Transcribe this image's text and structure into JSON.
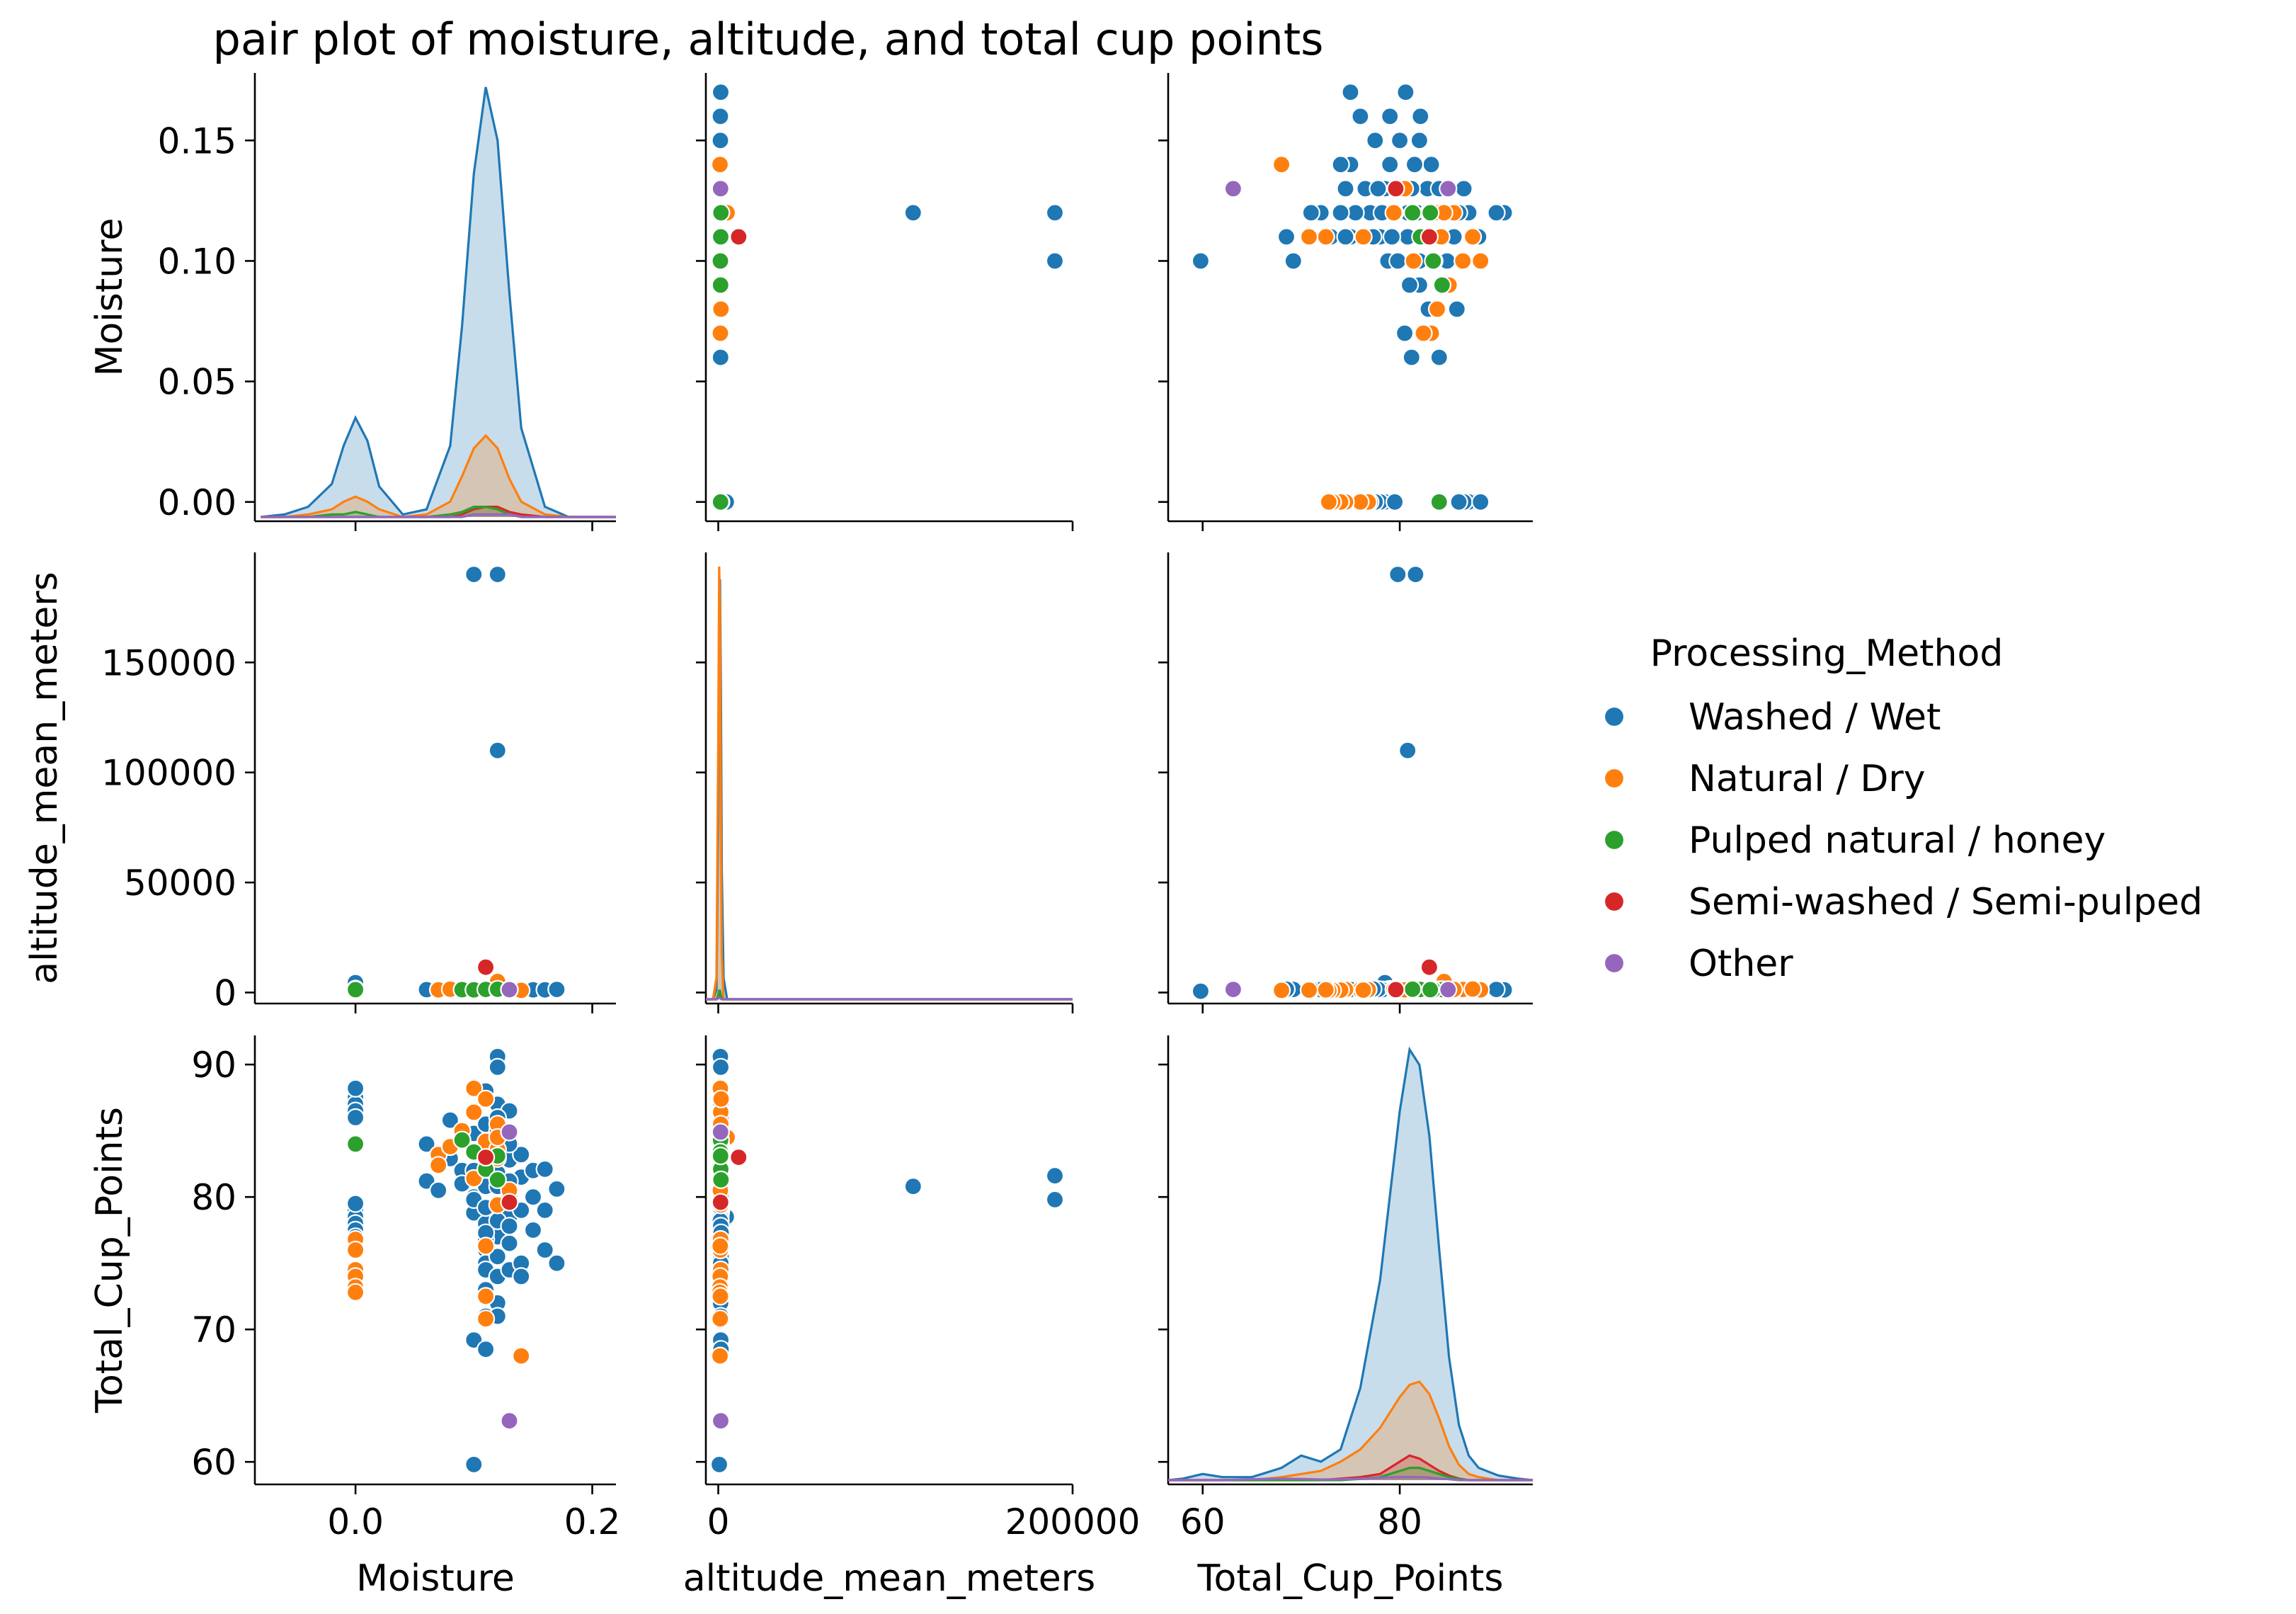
{
  "chart_data": {
    "type": "scatter",
    "subtype": "pair-plot",
    "title": "pair plot of moisture, altitude, and total cup points",
    "variables": [
      "Moisture",
      "altitude_mean_meters",
      "Total_Cup_Points"
    ],
    "hue": "Processing_Method",
    "legend": {
      "title": "Processing_Method",
      "placement": "right",
      "entries": [
        {
          "label": "Washed / Wet",
          "color": "#1f77b4"
        },
        {
          "label": "Natural / Dry",
          "color": "#ff7f0e"
        },
        {
          "label": "Pulped natural / honey",
          "color": "#2ca02c"
        },
        {
          "label": "Semi-washed / Semi-pulped",
          "color": "#d62728"
        },
        {
          "label": "Other",
          "color": "#9467bd"
        }
      ]
    },
    "axes": {
      "Moisture": {
        "lim": [
          -0.085,
          0.22
        ],
        "ticks": [
          0.0,
          0.2
        ],
        "tick_labels": [
          "0.0",
          "0.2"
        ],
        "row_lim": [
          -0.008,
          0.178
        ],
        "row_ticks": [
          0.0,
          0.05,
          0.1,
          0.15
        ],
        "row_tick_labels": [
          "0.00",
          "0.05",
          "0.10",
          "0.15"
        ]
      },
      "altitude_mean_meters": {
        "lim": [
          -7000,
          200000
        ],
        "ticks": [
          0,
          200000
        ],
        "tick_labels": [
          "0",
          "200000"
        ],
        "row_lim": [
          -5000,
          200000
        ],
        "row_ticks": [
          0,
          50000,
          100000,
          150000
        ],
        "row_tick_labels": [
          "0",
          "50000",
          "100000",
          "150000"
        ]
      },
      "Total_Cup_Points": {
        "lim": [
          56.5,
          93.5
        ],
        "ticks": [
          60,
          80
        ],
        "tick_labels": [
          "60",
          "80"
        ],
        "row_lim": [
          58.3,
          92.2
        ],
        "row_ticks": [
          60,
          70,
          80,
          90
        ],
        "row_tick_labels": [
          "60",
          "70",
          "80",
          "90"
        ]
      }
    },
    "points": {
      "washed": [
        [
          0.0,
          1300,
          88.0
        ],
        [
          0.0,
          1500,
          87.5
        ],
        [
          0.0,
          1700,
          87.0
        ],
        [
          0.0,
          1400,
          86.5
        ],
        [
          0.0,
          1200,
          86.0
        ],
        [
          0.0,
          1100,
          79.0
        ],
        [
          0.0,
          4500,
          78.5
        ],
        [
          0.0,
          1000,
          78.0
        ],
        [
          0.0,
          900,
          77.5
        ],
        [
          0.0,
          1300,
          77.0
        ],
        [
          0.0,
          1100,
          79.5
        ],
        [
          0.0,
          1600,
          88.2
        ],
        [
          0.06,
          1200,
          84.0
        ],
        [
          0.06,
          1300,
          81.2
        ],
        [
          0.07,
          1200,
          80.5
        ],
        [
          0.07,
          1400,
          83.2
        ],
        [
          0.08,
          1500,
          85.8
        ],
        [
          0.08,
          1600,
          82.9
        ],
        [
          0.09,
          1300,
          84.5
        ],
        [
          0.09,
          1200,
          82.0
        ],
        [
          0.09,
          1100,
          81.0
        ],
        [
          0.1,
          1500,
          86.5
        ],
        [
          0.1,
          1000,
          80.0
        ],
        [
          0.1,
          1300,
          78.8
        ],
        [
          0.1,
          1800,
          84.8
        ],
        [
          0.1,
          190000,
          79.8
        ],
        [
          0.1,
          1400,
          69.2
        ],
        [
          0.1,
          600,
          59.8
        ],
        [
          0.11,
          1500,
          88.0
        ],
        [
          0.11,
          1200,
          85.5
        ],
        [
          0.11,
          1300,
          83.0
        ],
        [
          0.11,
          1100,
          78.0
        ],
        [
          0.11,
          1400,
          76.0
        ],
        [
          0.11,
          1000,
          75.0
        ],
        [
          0.11,
          1600,
          73.0
        ],
        [
          0.11,
          1300,
          71.0
        ],
        [
          0.11,
          1500,
          68.5
        ],
        [
          0.11,
          1200,
          74.5
        ],
        [
          0.11,
          1300,
          80.8
        ],
        [
          0.12,
          1200,
          90.6
        ],
        [
          0.12,
          1400,
          89.8
        ],
        [
          0.12,
          1500,
          87.0
        ],
        [
          0.12,
          190000,
          81.6
        ],
        [
          0.12,
          110000,
          80.8
        ],
        [
          0.12,
          1300,
          84.0
        ],
        [
          0.12,
          1100,
          79.5
        ],
        [
          0.12,
          1000,
          77.0
        ],
        [
          0.12,
          1600,
          75.5
        ],
        [
          0.12,
          1200,
          74.0
        ],
        [
          0.12,
          1300,
          72.0
        ],
        [
          0.12,
          1400,
          71.0
        ],
        [
          0.13,
          1500,
          86.5
        ],
        [
          0.13,
          1300,
          82.8
        ],
        [
          0.13,
          1200,
          80.0
        ],
        [
          0.13,
          1100,
          78.5
        ],
        [
          0.13,
          1400,
          76.5
        ],
        [
          0.13,
          1300,
          74.5
        ],
        [
          0.14,
          1200,
          83.2
        ],
        [
          0.14,
          1300,
          81.5
        ],
        [
          0.14,
          1400,
          79.0
        ],
        [
          0.14,
          1500,
          75.0
        ],
        [
          0.14,
          1200,
          74.0
        ],
        [
          0.15,
          1300,
          82.0
        ],
        [
          0.15,
          1400,
          80.0
        ],
        [
          0.15,
          1200,
          77.5
        ],
        [
          0.16,
          1300,
          82.1
        ],
        [
          0.16,
          1500,
          79.0
        ],
        [
          0.16,
          1200,
          76.0
        ],
        [
          0.17,
          1600,
          80.6
        ],
        [
          0.17,
          1400,
          75.0
        ],
        [
          0.13,
          1300,
          84.0
        ],
        [
          0.11,
          1200,
          82.5
        ],
        [
          0.12,
          1400,
          81.8
        ],
        [
          0.1,
          1500,
          83.5
        ],
        [
          0.11,
          1300,
          79.2
        ],
        [
          0.12,
          1200,
          78.2
        ],
        [
          0.13,
          1400,
          77.8
        ],
        [
          0.11,
          1100,
          76.8
        ],
        [
          0.12,
          1300,
          85.0
        ],
        [
          0.12,
          1500,
          86.0
        ],
        [
          0.1,
          1200,
          82.0
        ],
        [
          0.13,
          1100,
          81.2
        ],
        [
          0.11,
          1600,
          77.3
        ]
      ],
      "natural": [
        [
          0.0,
          1300,
          76.8
        ],
        [
          0.0,
          1200,
          76.0
        ],
        [
          0.0,
          1400,
          74.5
        ],
        [
          0.0,
          1100,
          74.0
        ],
        [
          0.0,
          1000,
          73.2
        ],
        [
          0.0,
          900,
          72.8
        ],
        [
          0.07,
          1300,
          83.2
        ],
        [
          0.07,
          1200,
          82.4
        ],
        [
          0.08,
          1500,
          83.8
        ],
        [
          0.09,
          1300,
          85.0
        ],
        [
          0.1,
          1200,
          88.2
        ],
        [
          0.1,
          1400,
          86.4
        ],
        [
          0.11,
          1600,
          87.4
        ],
        [
          0.11,
          1300,
          84.2
        ],
        [
          0.11,
          1200,
          72.5
        ],
        [
          0.11,
          1100,
          70.8
        ],
        [
          0.12,
          1400,
          85.5
        ],
        [
          0.12,
          1300,
          82.9
        ],
        [
          0.13,
          1200,
          80.5
        ],
        [
          0.14,
          1000,
          68.0
        ],
        [
          0.12,
          1500,
          79.4
        ],
        [
          0.11,
          1100,
          76.3
        ],
        [
          0.1,
          1300,
          81.4
        ],
        [
          0.12,
          1200,
          83.6
        ],
        [
          0.12,
          5000,
          84.5
        ]
      ],
      "pulped": [
        [
          0.0,
          1300,
          84.0
        ],
        [
          0.09,
          1300,
          84.3
        ],
        [
          0.1,
          1200,
          83.4
        ],
        [
          0.11,
          1400,
          82.1
        ],
        [
          0.12,
          1300,
          83.1
        ],
        [
          0.12,
          1500,
          81.3
        ]
      ],
      "semi": [
        [
          0.11,
          11500,
          83.0
        ],
        [
          0.13,
          1300,
          79.6
        ]
      ],
      "other": [
        [
          0.13,
          1400,
          63.1
        ],
        [
          0.13,
          1300,
          84.9
        ]
      ]
    },
    "kde": {
      "Moisture": {
        "x": [
          -0.08,
          -0.06,
          -0.04,
          -0.02,
          -0.01,
          0.0,
          0.01,
          0.02,
          0.04,
          0.06,
          0.08,
          0.09,
          0.1,
          0.11,
          0.12,
          0.13,
          0.14,
          0.16,
          0.18,
          0.2,
          0.22
        ],
        "washed": [
          0.0,
          0.001,
          0.004,
          0.013,
          0.028,
          0.039,
          0.03,
          0.012,
          0.001,
          0.003,
          0.028,
          0.075,
          0.135,
          0.169,
          0.148,
          0.088,
          0.035,
          0.004,
          0.0,
          0.0,
          0.0
        ],
        "natural": [
          0.0,
          0.0,
          0.001,
          0.003,
          0.006,
          0.008,
          0.006,
          0.003,
          0.0,
          0.001,
          0.006,
          0.016,
          0.027,
          0.032,
          0.027,
          0.015,
          0.006,
          0.001,
          0.0,
          0.0,
          0.0
        ],
        "pulped": [
          0.0,
          0.0,
          0.0,
          0.001,
          0.001,
          0.002,
          0.001,
          0.0,
          0.0,
          0.0,
          0.001,
          0.002,
          0.004,
          0.004,
          0.003,
          0.001,
          0.0,
          0.0,
          0.0,
          0.0,
          0.0
        ],
        "semi": [
          0.0,
          0.0,
          0.0,
          0.0,
          0.0,
          0.0,
          0.0,
          0.0,
          0.0,
          0.0,
          0.0,
          0.001,
          0.003,
          0.004,
          0.004,
          0.002,
          0.001,
          0.0,
          0.0,
          0.0,
          0.0
        ],
        "other": [
          0.0,
          0.0,
          0.0,
          0.0,
          0.0,
          0.0,
          0.0,
          0.0,
          0.0,
          0.0,
          0.0,
          0.0,
          0.001,
          0.001,
          0.001,
          0.001,
          0.0,
          0.0,
          0.0,
          0.0,
          0.0
        ]
      },
      "altitude_mean_meters": {
        "x": [
          -7000,
          -3000,
          -1000,
          0,
          500,
          1000,
          1500,
          2000,
          3000,
          5000,
          8000,
          15000,
          50000,
          100000,
          150000,
          200000
        ],
        "washed": [
          0,
          0.0,
          0.02,
          0.4,
          0.85,
          0.97,
          0.7,
          0.3,
          0.05,
          0.0,
          0,
          0,
          0,
          0,
          0,
          0
        ],
        "natural": [
          0,
          0.0,
          0.05,
          0.6,
          1.0,
          0.9,
          0.4,
          0.1,
          0.0,
          0,
          0,
          0,
          0,
          0,
          0,
          0
        ],
        "pulped": [
          0,
          0,
          0.0,
          0.01,
          0.02,
          0.02,
          0.01,
          0,
          0,
          0,
          0,
          0,
          0,
          0,
          0,
          0
        ],
        "semi": [
          0,
          0,
          0.0,
          0.005,
          0.01,
          0.01,
          0.006,
          0.002,
          0.0,
          0,
          0,
          0,
          0,
          0,
          0,
          0
        ],
        "other": [
          0,
          0,
          0,
          0.002,
          0.004,
          0.003,
          0.001,
          0,
          0,
          0,
          0,
          0,
          0,
          0,
          0,
          0
        ]
      },
      "Total_Cup_Points": {
        "x": [
          56.5,
          58,
          60,
          62,
          65,
          68,
          70,
          72,
          74,
          76,
          78,
          80,
          81,
          82,
          83,
          84,
          85,
          86,
          87,
          88,
          90,
          92,
          93.5
        ],
        "washed": [
          0,
          0.0005,
          0.002,
          0.001,
          0.001,
          0.004,
          0.008,
          0.006,
          0.01,
          0.03,
          0.065,
          0.12,
          0.14,
          0.135,
          0.112,
          0.075,
          0.04,
          0.018,
          0.008,
          0.004,
          0.0015,
          0.0005,
          0
        ],
        "natural": [
          0,
          0,
          0,
          0,
          0,
          0.001,
          0.002,
          0.003,
          0.006,
          0.01,
          0.017,
          0.027,
          0.031,
          0.032,
          0.028,
          0.02,
          0.011,
          0.005,
          0.002,
          0.001,
          0,
          0,
          0
        ],
        "pulped": [
          0,
          0,
          0,
          0,
          0,
          0,
          0,
          0,
          0,
          0.0004,
          0.001,
          0.003,
          0.004,
          0.004,
          0.003,
          0.002,
          0.001,
          0.0004,
          0,
          0,
          0,
          0,
          0
        ],
        "semi": [
          0,
          0,
          0,
          0,
          0,
          0,
          0,
          0,
          0.0005,
          0.001,
          0.002,
          0.006,
          0.008,
          0.007,
          0.005,
          0.003,
          0.0015,
          0.0005,
          0,
          0,
          0,
          0,
          0
        ],
        "other": [
          0,
          0,
          0,
          0,
          0.0003,
          0.0005,
          0.0004,
          0.0002,
          0.0003,
          0.0005,
          0.0008,
          0.001,
          0.001,
          0.001,
          0.0008,
          0.0005,
          0.0003,
          0,
          0,
          0,
          0,
          0,
          0
        ]
      }
    }
  }
}
